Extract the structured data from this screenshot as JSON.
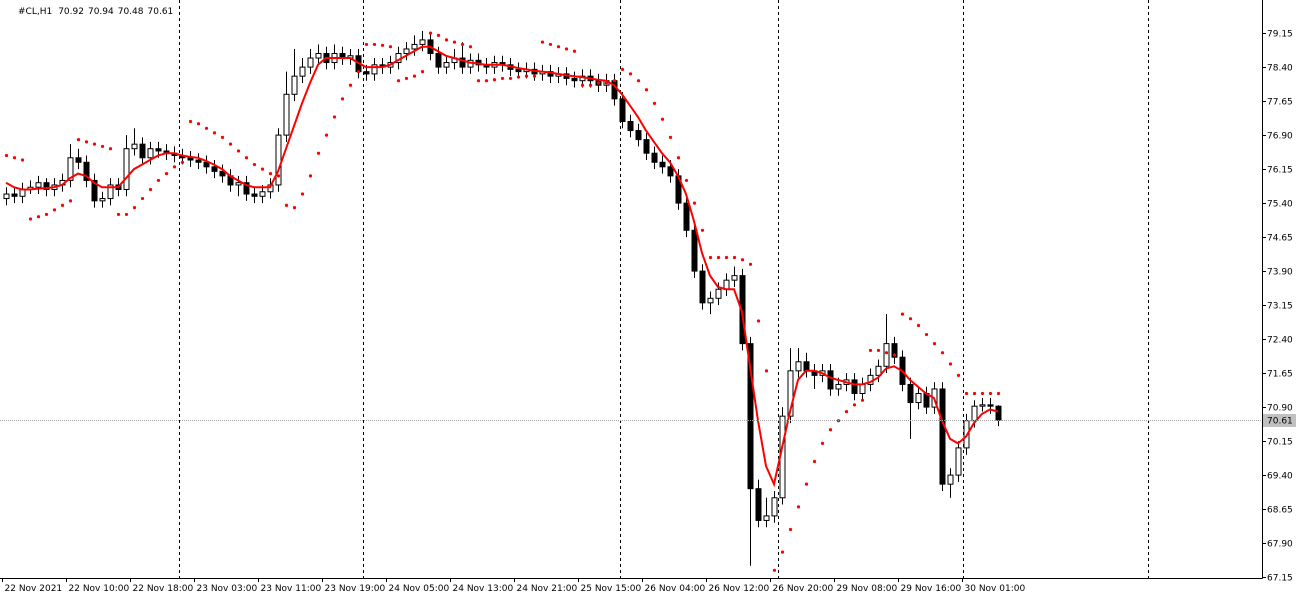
{
  "chart_data": {
    "type": "candlestick",
    "title": "#CL,H1",
    "open": [
      75.5,
      75.6,
      75.55,
      75.7,
      75.75,
      75.85,
      75.7,
      75.8,
      75.9,
      76.4,
      76.3,
      75.9,
      75.45,
      75.5,
      75.8,
      75.7,
      76.6,
      76.7,
      76.4,
      76.6,
      76.55,
      76.5,
      76.45,
      76.4,
      76.35,
      76.3,
      76.2,
      76.1,
      76.0,
      75.8,
      75.85,
      75.6,
      75.55,
      75.65,
      75.8,
      76.9,
      77.8,
      78.2,
      78.4,
      78.6,
      78.7,
      78.5,
      78.7,
      78.6,
      78.65,
      78.3,
      78.25,
      78.45,
      78.4,
      78.5,
      78.7,
      78.8,
      78.9,
      79.0,
      78.7,
      78.4,
      78.5,
      78.6,
      78.4,
      78.55,
      78.45,
      78.4,
      78.5,
      78.45,
      78.35,
      78.3,
      78.35,
      78.25,
      78.3,
      78.2,
      78.25,
      78.15,
      78.1,
      78.2,
      78.1,
      78.0,
      78.1,
      77.7,
      77.2,
      77.0,
      76.8,
      76.5,
      76.3,
      76.2,
      76.0,
      75.4,
      74.8,
      73.9,
      73.2,
      73.3,
      73.5,
      73.7,
      73.8,
      72.3,
      69.1,
      68.4,
      68.5,
      68.9,
      70.7,
      71.7,
      71.9,
      71.7,
      71.6,
      71.7,
      71.3,
      71.4,
      71.5,
      71.2,
      71.4,
      71.6,
      71.8,
      72.3,
      72.0,
      71.4,
      71.0,
      71.2,
      70.9,
      71.3,
      69.2,
      69.4,
      70.0,
      70.6,
      70.92,
      70.95,
      70.92
    ],
    "high": [
      75.75,
      75.75,
      75.85,
      75.9,
      76.0,
      75.95,
      75.95,
      76.05,
      76.7,
      76.6,
      76.45,
      76.05,
      75.65,
      75.95,
      75.95,
      76.9,
      77.05,
      76.85,
      76.75,
      76.75,
      76.7,
      76.65,
      76.6,
      76.55,
      76.5,
      76.45,
      76.35,
      76.25,
      76.15,
      76.0,
      76.0,
      75.75,
      75.8,
      75.95,
      77.05,
      78.3,
      78.8,
      78.6,
      78.8,
      78.9,
      78.85,
      78.9,
      78.85,
      78.8,
      78.8,
      78.45,
      78.6,
      78.6,
      78.65,
      78.85,
      78.95,
      79.1,
      79.2,
      79.15,
      78.85,
      78.65,
      78.8,
      78.95,
      78.7,
      78.7,
      78.6,
      78.65,
      78.65,
      78.6,
      78.5,
      78.5,
      78.5,
      78.45,
      78.45,
      78.4,
      78.4,
      78.3,
      78.35,
      78.35,
      78.25,
      78.25,
      78.25,
      77.85,
      77.35,
      77.15,
      76.95,
      76.65,
      76.45,
      76.35,
      76.15,
      75.55,
      74.95,
      74.05,
      73.45,
      73.65,
      73.85,
      74.0,
      73.95,
      72.45,
      69.3,
      68.9,
      69.05,
      70.9,
      72.2,
      72.2,
      72.1,
      71.85,
      71.85,
      71.85,
      71.55,
      71.65,
      71.65,
      71.55,
      71.75,
      71.95,
      72.95,
      72.45,
      72.15,
      71.55,
      71.35,
      71.35,
      71.45,
      71.45,
      69.55,
      70.15,
      70.75,
      71.05,
      71.1,
      71.1,
      70.94
    ],
    "low": [
      75.35,
      75.4,
      75.4,
      75.6,
      75.6,
      75.55,
      75.55,
      75.65,
      75.75,
      76.15,
      75.75,
      75.3,
      75.3,
      75.35,
      75.55,
      75.55,
      76.45,
      76.25,
      76.25,
      76.4,
      76.35,
      76.3,
      76.25,
      76.2,
      76.15,
      76.05,
      75.95,
      75.85,
      75.65,
      75.55,
      75.45,
      75.4,
      75.4,
      75.5,
      75.65,
      76.75,
      77.65,
      78.05,
      78.25,
      78.45,
      78.35,
      78.35,
      78.45,
      78.45,
      78.15,
      78.1,
      78.1,
      78.25,
      78.25,
      78.35,
      78.55,
      78.65,
      78.75,
      78.55,
      78.25,
      78.25,
      78.35,
      78.25,
      78.25,
      78.3,
      78.25,
      78.25,
      78.3,
      78.2,
      78.15,
      78.15,
      78.1,
      78.1,
      78.05,
      78.05,
      78.0,
      77.95,
      77.95,
      77.95,
      77.85,
      77.85,
      77.55,
      77.05,
      76.85,
      76.65,
      76.35,
      76.15,
      76.05,
      75.85,
      75.25,
      74.65,
      73.75,
      73.05,
      72.95,
      73.15,
      73.35,
      73.55,
      72.15,
      67.4,
      68.25,
      68.25,
      68.35,
      68.75,
      70.55,
      71.55,
      71.55,
      71.3,
      71.45,
      71.15,
      71.15,
      71.25,
      71.05,
      71.05,
      71.25,
      71.45,
      71.65,
      71.85,
      71.25,
      70.2,
      70.85,
      70.75,
      70.75,
      69.05,
      68.9,
      69.25,
      69.85,
      70.45,
      70.8,
      70.75,
      70.48
    ],
    "close": [
      75.6,
      75.55,
      75.7,
      75.75,
      75.85,
      75.7,
      75.8,
      75.9,
      76.4,
      76.3,
      75.9,
      75.45,
      75.5,
      75.8,
      75.7,
      76.6,
      76.7,
      76.4,
      76.6,
      76.55,
      76.5,
      76.45,
      76.4,
      76.35,
      76.3,
      76.2,
      76.1,
      76.0,
      75.8,
      75.85,
      75.6,
      75.55,
      75.65,
      75.8,
      76.9,
      77.8,
      78.2,
      78.4,
      78.6,
      78.7,
      78.5,
      78.7,
      78.6,
      78.65,
      78.3,
      78.25,
      78.45,
      78.4,
      78.5,
      78.7,
      78.8,
      78.9,
      79.0,
      78.7,
      78.4,
      78.5,
      78.6,
      78.4,
      78.55,
      78.45,
      78.4,
      78.5,
      78.45,
      78.35,
      78.3,
      78.35,
      78.25,
      78.3,
      78.2,
      78.25,
      78.15,
      78.1,
      78.2,
      78.1,
      78.0,
      78.1,
      77.7,
      77.2,
      77.0,
      76.8,
      76.5,
      76.3,
      76.2,
      76.0,
      75.4,
      74.8,
      73.9,
      73.2,
      73.3,
      73.5,
      73.7,
      73.8,
      72.3,
      69.1,
      68.4,
      68.5,
      68.9,
      70.7,
      71.7,
      71.9,
      71.7,
      71.6,
      71.7,
      71.3,
      71.4,
      71.5,
      71.2,
      71.4,
      71.6,
      71.8,
      72.3,
      72.0,
      71.4,
      71.0,
      71.2,
      70.9,
      71.3,
      69.2,
      69.4,
      70.0,
      70.6,
      70.92,
      70.95,
      70.92,
      70.61
    ],
    "ma": {
      "color": "#ff0000",
      "values": [
        75.85,
        75.75,
        75.7,
        75.7,
        75.72,
        75.73,
        75.75,
        75.8,
        75.95,
        76.05,
        76.0,
        75.85,
        75.75,
        75.75,
        75.75,
        75.95,
        76.15,
        76.25,
        76.35,
        76.45,
        76.5,
        76.5,
        76.45,
        76.42,
        76.4,
        76.33,
        76.25,
        76.15,
        76.0,
        75.9,
        75.8,
        75.75,
        75.75,
        75.75,
        76.1,
        76.6,
        77.1,
        77.6,
        78.05,
        78.45,
        78.6,
        78.6,
        78.6,
        78.6,
        78.5,
        78.4,
        78.4,
        78.4,
        78.45,
        78.55,
        78.65,
        78.75,
        78.85,
        78.85,
        78.75,
        78.65,
        78.6,
        78.55,
        78.5,
        78.48,
        78.45,
        78.45,
        78.45,
        78.42,
        78.38,
        78.35,
        78.32,
        78.3,
        78.28,
        78.25,
        78.22,
        78.2,
        78.18,
        78.15,
        78.12,
        78.1,
        78.0,
        77.8,
        77.55,
        77.3,
        77.0,
        76.75,
        76.5,
        76.3,
        76.0,
        75.6,
        75.0,
        74.3,
        73.8,
        73.55,
        73.5,
        73.5,
        73.0,
        71.8,
        70.6,
        69.6,
        69.2,
        70.0,
        70.8,
        71.5,
        71.7,
        71.7,
        71.65,
        71.55,
        71.5,
        71.45,
        71.4,
        71.4,
        71.45,
        71.55,
        71.75,
        71.8,
        71.7,
        71.5,
        71.35,
        71.2,
        71.1,
        70.6,
        70.2,
        70.1,
        70.25,
        70.55,
        70.75,
        70.85,
        70.8
      ]
    },
    "sar": {
      "color": "#ff0000",
      "values": [
        76.45,
        76.4,
        76.35,
        75.05,
        75.1,
        75.15,
        75.25,
        75.35,
        75.45,
        76.8,
        76.75,
        76.7,
        76.65,
        76.6,
        75.15,
        75.15,
        75.3,
        75.5,
        75.7,
        75.9,
        76.05,
        76.2,
        76.3,
        77.2,
        77.15,
        77.05,
        76.95,
        76.85,
        76.7,
        76.55,
        76.4,
        76.25,
        76.15,
        76.05,
        76.0,
        75.35,
        75.3,
        75.6,
        76.0,
        76.5,
        76.9,
        77.3,
        77.7,
        78.0,
        78.3,
        78.9,
        78.9,
        78.88,
        78.85,
        78.1,
        78.15,
        78.2,
        78.3,
        79.15,
        79.1,
        79.0,
        78.95,
        78.9,
        78.85,
        78.1,
        78.1,
        78.12,
        78.15,
        78.15,
        78.18,
        78.2,
        78.2,
        78.95,
        78.9,
        78.85,
        78.8,
        78.75,
        78.0,
        78.0,
        78.05,
        78.05,
        78.1,
        78.35,
        78.25,
        78.1,
        77.9,
        77.6,
        77.25,
        76.85,
        76.4,
        75.9,
        75.4,
        74.8,
        74.2,
        74.2,
        74.2,
        74.2,
        74.15,
        74.05,
        72.8,
        71.7,
        67.3,
        67.7,
        68.2,
        68.7,
        69.2,
        69.7,
        70.1,
        70.4,
        70.6,
        70.8,
        70.95,
        71.05,
        72.15,
        72.15,
        72.1,
        72.05,
        72.95,
        72.85,
        72.7,
        72.5,
        72.3,
        72.1,
        71.85,
        71.6,
        71.2,
        71.2,
        71.2,
        71.2,
        71.2
      ]
    },
    "bull_color": "#ffffff",
    "bear_color": "#000000",
    "xlim": [
      -0.75,
      157
    ],
    "ylim": [
      67.13,
      79.88
    ],
    "yticks": [
      79.15,
      {
        "value": 78.4,
        "label": "78.40"
      },
      77.65,
      {
        "value": 76.9,
        "label": "76.90"
      },
      76.15,
      {
        "value": 75.4,
        "label": "75.40"
      },
      74.65,
      {
        "value": 73.9,
        "label": "73.90"
      },
      73.15,
      {
        "value": 72.4,
        "label": "72.40"
      },
      71.65,
      {
        "value": 70.9,
        "label": "70.90"
      },
      70.15,
      {
        "value": 69.4,
        "label": "69.40"
      },
      68.65,
      {
        "value": 67.9,
        "label": "67.90"
      },
      67.15
    ],
    "xticks": [
      {
        "value": 0,
        "label": "22 Nov 2021"
      },
      {
        "value": 8,
        "label": "22 Nov 10:00"
      },
      {
        "value": 16,
        "label": "22 Nov 18:00"
      },
      {
        "value": 24,
        "label": "23 Nov 03:00"
      },
      {
        "value": 32,
        "label": "23 Nov 11:00"
      },
      {
        "value": 40,
        "label": "23 Nov 19:00"
      },
      {
        "value": 48,
        "label": "24 Nov 05:00"
      },
      {
        "value": 56,
        "label": "24 Nov 13:00"
      },
      {
        "value": 64,
        "label": "24 Nov 21:00"
      },
      {
        "value": 72,
        "label": "25 Nov 15:00"
      },
      {
        "value": 80,
        "label": "26 Nov 04:00"
      },
      {
        "value": 88,
        "label": "26 Nov 12:00"
      },
      {
        "value": 96,
        "label": "26 Nov 20:00"
      },
      {
        "value": 104,
        "label": "29 Nov 08:00"
      },
      {
        "value": 112,
        "label": "29 Nov 16:00"
      },
      {
        "value": 120,
        "label": "30 Nov 01:00"
      }
    ]
  }
}
